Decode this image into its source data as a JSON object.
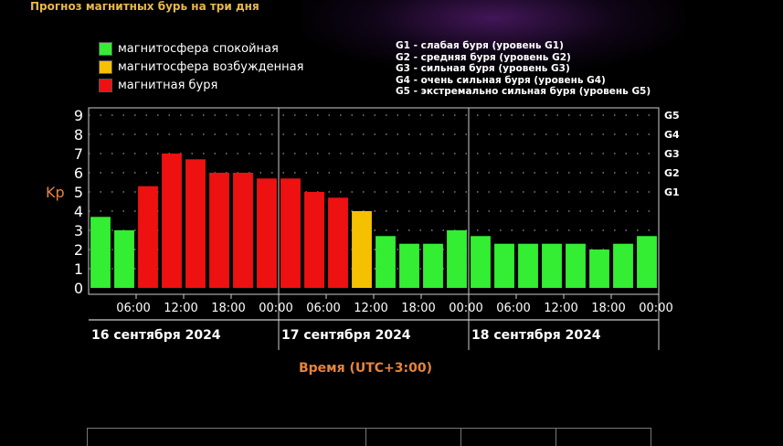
{
  "page_title": "Прогноз магнитных бурь на три дня",
  "colors": {
    "quiet": "#33ee33",
    "excited": "#f5c000",
    "storm": "#ee1111",
    "axis_label": "#e8833a",
    "grid_dots": "#9a9a9a",
    "frame": "#cccccc"
  },
  "legend": [
    {
      "color": "#33ee33",
      "label": "магнитосфера спокойная"
    },
    {
      "color": "#f5c000",
      "label": "магнитосфера возбужденная"
    },
    {
      "color": "#ee1111",
      "label": "магнитная буря"
    }
  ],
  "g_legend": [
    "G1 - слабая буря (уровень G1)",
    "G2 - средняя буря (уровень G2)",
    "G3 - сильная буря (уровень G3)",
    "G4 - очень сильная буря (уровень G4)",
    "G5 - экстремально сильная буря (уровень G5)"
  ],
  "chart_data": {
    "type": "bar",
    "ylabel": "Kp",
    "xlabel": "Время (UTC+3:00)",
    "ylim": [
      0,
      9
    ],
    "y_ticks": [
      "0",
      "1",
      "2",
      "3",
      "4",
      "5",
      "6",
      "7",
      "8",
      "9"
    ],
    "right_ticks": [
      {
        "label": "G1",
        "kp": 5
      },
      {
        "label": "G2",
        "kp": 6
      },
      {
        "label": "G3",
        "kp": 7
      },
      {
        "label": "G4",
        "kp": 8
      },
      {
        "label": "G5",
        "kp": 9
      }
    ],
    "x_tick_labels": [
      "06:00",
      "12:00",
      "18:00",
      "00:00",
      "06:00",
      "12:00",
      "18:00",
      "00:00",
      "06:00",
      "12:00",
      "18:00",
      "00:00"
    ],
    "days": [
      "16 сентября 2024",
      "17 сентября 2024",
      "18 сентября 2024"
    ],
    "values": [
      3.7,
      3.0,
      5.3,
      7.0,
      6.7,
      6.0,
      6.0,
      5.7,
      5.7,
      5.0,
      4.7,
      4.0,
      2.7,
      2.3,
      2.3,
      3.0,
      2.7,
      2.3,
      2.3,
      2.3,
      2.3,
      2.0,
      2.3,
      2.7
    ],
    "levels": [
      "quiet",
      "quiet",
      "storm",
      "storm",
      "storm",
      "storm",
      "storm",
      "storm",
      "storm",
      "storm",
      "storm",
      "excited",
      "quiet",
      "quiet",
      "quiet",
      "quiet",
      "quiet",
      "quiet",
      "quiet",
      "quiet",
      "quiet",
      "quiet",
      "quiet",
      "quiet"
    ],
    "grid": true
  },
  "bottom_table": {}
}
